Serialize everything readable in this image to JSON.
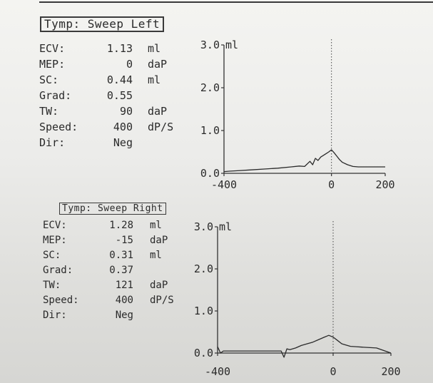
{
  "panels": [
    {
      "title": "Tymp: Sweep Left",
      "params": [
        {
          "label": "ECV:",
          "value": "1.13",
          "unit": "ml"
        },
        {
          "label": "MEP:",
          "value": "0",
          "unit": "daP"
        },
        {
          "label": "SC:",
          "value": "0.44",
          "unit": "ml"
        },
        {
          "label": "Grad:",
          "value": "0.55",
          "unit": ""
        },
        {
          "label": "TW:",
          "value": "90",
          "unit": "daP"
        },
        {
          "label": "Speed:",
          "value": "400",
          "unit": "dP/S"
        },
        {
          "label": "Dir:",
          "value": "Neg",
          "unit": ""
        }
      ]
    },
    {
      "title": "Tymp: Sweep Right",
      "params": [
        {
          "label": "ECV:",
          "value": "1.28",
          "unit": "ml"
        },
        {
          "label": "MEP:",
          "value": "-15",
          "unit": "daP"
        },
        {
          "label": "SC:",
          "value": "0.31",
          "unit": "ml"
        },
        {
          "label": "Grad:",
          "value": "0.37",
          "unit": ""
        },
        {
          "label": "TW:",
          "value": "121",
          "unit": "daP"
        },
        {
          "label": "Speed:",
          "value": "400",
          "unit": "dP/S"
        },
        {
          "label": "Dir:",
          "value": "Neg",
          "unit": ""
        }
      ]
    }
  ],
  "chart_data": [
    {
      "type": "line",
      "title": "Tymp: Sweep Left",
      "xlabel": "",
      "ylabel": "",
      "x_ticks": [
        "-400",
        "0",
        "200"
      ],
      "y_ticks": [
        "0.0",
        "1.0",
        "2.0",
        "3.0"
      ],
      "y_unit": "ml",
      "xlim": [
        -400,
        200
      ],
      "ylim": [
        0,
        3.0
      ],
      "reference_x": 0,
      "x": [
        -400,
        -380,
        -350,
        -300,
        -250,
        -200,
        -150,
        -120,
        -100,
        -80,
        -70,
        -60,
        -50,
        -40,
        -30,
        -20,
        -10,
        0,
        10,
        20,
        30,
        40,
        60,
        80,
        100,
        150,
        200
      ],
      "y": [
        0.04,
        0.05,
        0.06,
        0.08,
        0.1,
        0.12,
        0.15,
        0.17,
        0.16,
        0.28,
        0.2,
        0.35,
        0.3,
        0.38,
        0.42,
        0.46,
        0.5,
        0.55,
        0.48,
        0.4,
        0.32,
        0.26,
        0.2,
        0.16,
        0.15,
        0.15,
        0.15
      ]
    },
    {
      "type": "line",
      "title": "Tymp: Sweep Right",
      "xlabel": "",
      "ylabel": "",
      "x_ticks": [
        "-400",
        "0",
        "200"
      ],
      "y_ticks": [
        "0.0",
        "1.0",
        "2.0",
        "3.0"
      ],
      "y_unit": "ml",
      "xlim": [
        -400,
        200
      ],
      "ylim": [
        0,
        3.0
      ],
      "reference_x": 0,
      "x": [
        -400,
        -390,
        -380,
        -350,
        -300,
        -250,
        -200,
        -180,
        -170,
        -160,
        -150,
        -130,
        -110,
        -90,
        -70,
        -50,
        -30,
        -15,
        0,
        15,
        30,
        40,
        60,
        80,
        100,
        150,
        200
      ],
      "y": [
        0.15,
        0.0,
        0.05,
        0.05,
        0.05,
        0.05,
        0.05,
        0.05,
        -0.1,
        0.1,
        0.08,
        0.12,
        0.18,
        0.22,
        0.26,
        0.32,
        0.38,
        0.42,
        0.38,
        0.3,
        0.22,
        0.2,
        0.16,
        0.15,
        0.14,
        0.12,
        0.0
      ]
    }
  ]
}
